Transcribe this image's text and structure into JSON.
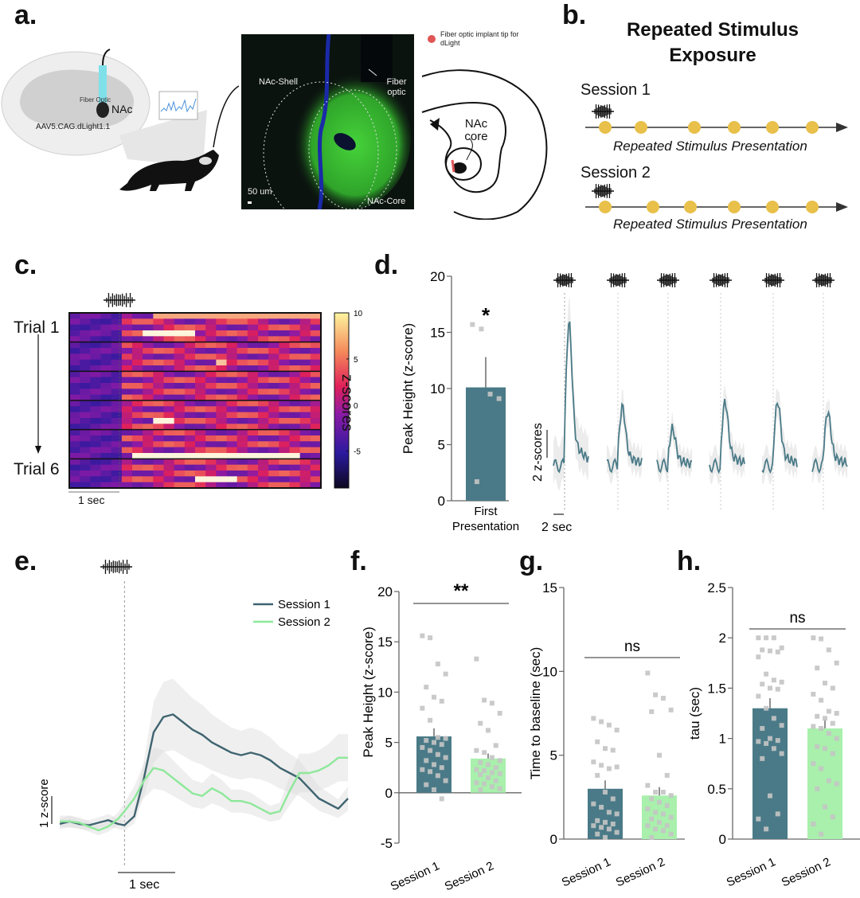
{
  "panel_labels": {
    "a": "a.",
    "b": "b.",
    "c": "c.",
    "d": "d.",
    "e": "e.",
    "f": "f.",
    "g": "g.",
    "h": "h."
  },
  "panel_a": {
    "fiber_optic_label": "Fiber Optic",
    "nac_label": "NAc",
    "virus_label": "AAV5.CAG.dLight1.1",
    "micro_labels": {
      "shell": "NAc-Shell",
      "fiber": "Fiber optic",
      "core": "NAc-Core",
      "scale": "50 um"
    },
    "legend_text": "Fiber optic implant tip for dLight",
    "atlas_label": "NAc core",
    "colors": {
      "implant": "#e05555",
      "fiber": "#7fe0ea",
      "green": "#3fbf2a",
      "blue": "#1a2a9a"
    }
  },
  "panel_b": {
    "title_line1": "Repeated Stimulus",
    "title_line2": "Exposure",
    "sessions": [
      {
        "label": "Session 1",
        "caption": "Repeated Stimulus Presentation",
        "stimuli_count": 6
      },
      {
        "label": "Session 2",
        "caption": "Repeated Stimulus Presentation",
        "stimuli_count": 6
      }
    ],
    "dot_color": "#e8c04a"
  },
  "chart_data": [
    {
      "id": "c",
      "type": "heatmap",
      "row_labels": [
        "Trial 1",
        "Trial 6"
      ],
      "trials": 6,
      "rows_per_trial": 5,
      "x_scale_label": "1 sec",
      "colorbar": {
        "label": "z-scores",
        "ticks": [
          10,
          5,
          0,
          -5
        ],
        "range": [
          -9,
          10
        ]
      },
      "hot_rows": [
        {
          "trial": 1,
          "row": 3,
          "start": 0.28,
          "end": 0.48,
          "value": 10
        },
        {
          "trial": 1,
          "row": 0,
          "start": 0.3,
          "end": 1.0,
          "value": 7
        },
        {
          "trial": 2,
          "row": 3,
          "start": 0.55,
          "end": 0.62,
          "value": 8
        },
        {
          "trial": 4,
          "row": 3,
          "start": 0.3,
          "end": 0.4,
          "value": 10
        },
        {
          "trial": 5,
          "row": 4,
          "start": 0.25,
          "end": 0.9,
          "value": 10
        },
        {
          "trial": 6,
          "row": 3,
          "start": 0.5,
          "end": 0.65,
          "value": 10
        }
      ]
    },
    {
      "id": "d_bar",
      "type": "bar",
      "title": "",
      "categories": [
        "First Presentation"
      ],
      "values": [
        10.1
      ],
      "error": [
        2.7
      ],
      "points": [
        15.7,
        15.3,
        9.5,
        9.1,
        1.7
      ],
      "ylabel": "Peak Height (z-score)",
      "ylim": [
        0,
        20
      ],
      "yticks": [
        0,
        5,
        10,
        15,
        20
      ],
      "significance": "*",
      "bar_color": "#4a7a87"
    },
    {
      "id": "d_traces",
      "type": "line",
      "description": "Average trace around each of 6 stimulus presentations",
      "stimuli": 6,
      "peaks_zscore": [
        8.5,
        3.5,
        2.2,
        3.8,
        3.8,
        3.2
      ],
      "scale_y_label": "2 z-scores",
      "scale_x_label": "2 sec",
      "line_color": "#4a7a87"
    },
    {
      "id": "e",
      "type": "line",
      "x": [
        -1.0,
        -0.85,
        -0.7,
        -0.55,
        -0.4,
        -0.25,
        -0.1,
        0.0,
        0.15,
        0.3,
        0.45,
        0.6,
        0.75,
        0.9,
        1.05,
        1.2,
        1.35,
        1.5,
        1.65,
        1.8,
        1.95,
        2.1,
        2.25,
        2.4,
        2.55,
        2.7,
        2.85,
        3.0,
        3.15,
        3.3,
        3.45
      ],
      "series": [
        {
          "name": "Session 1",
          "color": "#3f6470",
          "values": [
            0.0,
            0.1,
            0.0,
            -0.05,
            0.05,
            0.15,
            0.0,
            -0.05,
            0.3,
            1.8,
            3.6,
            4.2,
            4.3,
            4.0,
            3.7,
            3.5,
            3.2,
            3.0,
            2.8,
            2.7,
            2.8,
            2.7,
            2.5,
            2.2,
            2.0,
            1.8,
            1.4,
            1.0,
            0.8,
            0.6,
            1.0
          ]
        },
        {
          "name": "Session 2",
          "color": "#8ee89a",
          "values": [
            0.1,
            0.1,
            0.05,
            -0.1,
            -0.25,
            -0.1,
            0.2,
            0.5,
            1.0,
            1.7,
            2.2,
            2.1,
            1.8,
            1.5,
            1.2,
            1.1,
            1.4,
            1.2,
            0.9,
            0.9,
            0.8,
            0.6,
            0.4,
            0.5,
            1.3,
            2.0,
            2.0,
            2.1,
            2.3,
            2.6,
            2.6
          ]
        }
      ],
      "scale_y_label": "1 z-score",
      "scale_x_label": "1 sec",
      "legend_position": "top-right"
    },
    {
      "id": "f",
      "type": "bar",
      "categories": [
        "Session 1",
        "Session 2"
      ],
      "values": [
        5.6,
        3.4
      ],
      "error": [
        0.8,
        0.5
      ],
      "colors": [
        "#4a7a87",
        "#a8f0ac"
      ],
      "points": [
        [
          15.6,
          15.4,
          12.8,
          11.8,
          10.5,
          9.5,
          9.1,
          8.4,
          7.2,
          5.5,
          5.4,
          5.2,
          5.0,
          4.8,
          4.5,
          4.2,
          3.8,
          3.5,
          3.2,
          2.8,
          2.5,
          2.3,
          2.1,
          1.7,
          1.2,
          0.8,
          0.3,
          -0.6
        ],
        [
          13.3,
          9.2,
          8.9,
          7.9,
          6.9,
          6.2,
          4.7,
          4.2,
          4.0,
          3.5,
          3.2,
          3.0,
          2.8,
          2.5,
          2.3,
          2.2,
          2.0,
          1.9,
          1.8,
          1.5,
          1.2,
          1.0,
          0.9,
          0.6,
          0.4,
          0.3
        ]
      ],
      "ylabel": "Peak Height (z-score)",
      "ylim": [
        -5,
        20
      ],
      "yticks": [
        -5,
        0,
        5,
        10,
        15,
        20
      ],
      "significance": "**"
    },
    {
      "id": "g",
      "type": "bar",
      "categories": [
        "Session 1",
        "Session 2"
      ],
      "values": [
        3.0,
        2.6
      ],
      "error": [
        0.5,
        0.5
      ],
      "colors": [
        "#4a7a87",
        "#a8f0ac"
      ],
      "points": [
        [
          7.2,
          7.0,
          6.8,
          6.5,
          5.8,
          5.4,
          5.3,
          4.6,
          4.4,
          4.2,
          4.3,
          3.8,
          2.8,
          2.4,
          2.1,
          1.9,
          1.6,
          1.5,
          1.1,
          1.0,
          0.9,
          0.8,
          0.7,
          0.6,
          0.4,
          0.3,
          0.1
        ],
        [
          9.9,
          8.6,
          8.4,
          7.7,
          7.6,
          5.0,
          3.8,
          3.2,
          2.8,
          2.8,
          2.6,
          2.4,
          2.2,
          2.0,
          1.8,
          1.6,
          1.5,
          1.3,
          1.2,
          1.0,
          0.8,
          0.8,
          0.6,
          0.5,
          0.3,
          0.1
        ]
      ],
      "ylabel": "Time to baseline (sec)",
      "ylim": [
        0,
        15
      ],
      "yticks": [
        0,
        5,
        10,
        15
      ],
      "significance": "ns"
    },
    {
      "id": "h",
      "type": "bar",
      "categories": [
        "Session 1",
        "Session 2"
      ],
      "values": [
        1.3,
        1.1
      ],
      "error": [
        0.1,
        0.09
      ],
      "colors": [
        "#4a7a87",
        "#a8f0ac"
      ],
      "points": [
        [
          2.0,
          2.0,
          2.0,
          1.9,
          1.88,
          1.87,
          1.86,
          1.81,
          1.64,
          1.58,
          1.56,
          1.54,
          1.5,
          1.49,
          1.42,
          1.3,
          1.2,
          1.13,
          1.1,
          1.0,
          0.98,
          0.97,
          0.95,
          0.9,
          0.85,
          0.8,
          0.43,
          0.25,
          0.2,
          0.1
        ],
        [
          2.0,
          1.99,
          1.88,
          1.75,
          1.7,
          1.55,
          1.5,
          1.44,
          1.38,
          1.27,
          1.25,
          1.22,
          1.2,
          1.15,
          1.12,
          1.1,
          1.05,
          1.0,
          0.92,
          0.9,
          0.85,
          0.75,
          0.7,
          0.58,
          0.55,
          0.5,
          0.32,
          0.22,
          0.15,
          0.05
        ]
      ],
      "ylabel": "tau (sec)",
      "ylim": [
        0,
        2.5
      ],
      "yticks": [
        0,
        0.5,
        1,
        1.5,
        2,
        2.5
      ],
      "ytick_labels": [
        "0",
        "0.5",
        "1",
        "1.5",
        "2",
        "2.5"
      ],
      "significance": "ns"
    }
  ]
}
